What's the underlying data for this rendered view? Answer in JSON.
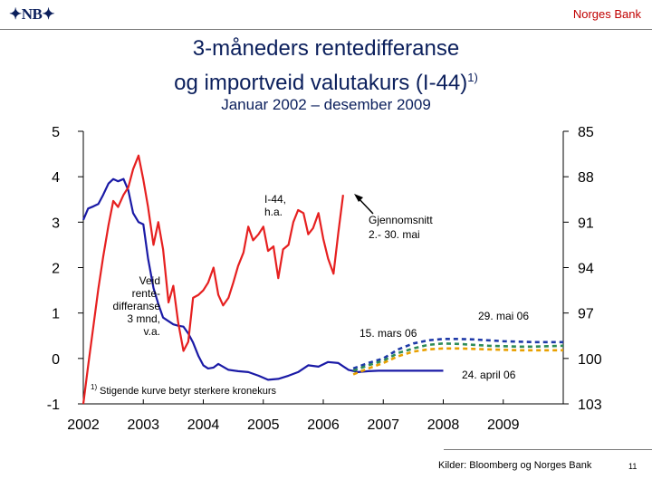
{
  "header": {
    "logo": "NB",
    "bank_name": "Norges Bank"
  },
  "footer": {
    "sources": "Kilder: Bloomberg og Norges Bank",
    "page_number": "11"
  },
  "colors": {
    "title": "#0b1f5c",
    "brand_red": "#c00000",
    "spread_line": "#1a1aa6",
    "currency_line": "#e62020",
    "forecast_blue": "#1f3aa8",
    "forecast_green": "#2e8b57",
    "forecast_orange": "#e8a000"
  },
  "chart_data": {
    "type": "line",
    "title": "3-måneders rentedifferanse",
    "title_line2": "og importveid valutakurs (I-44)",
    "title_sup": "1)",
    "subtitle": "Januar 2002 – desember 2009",
    "x_ticks": [
      "2002",
      "2003",
      "2004",
      "2005",
      "2006",
      "2007",
      "2008",
      "2009"
    ],
    "xlim": [
      2002.0,
      2010.0
    ],
    "y_left": {
      "ylim": [
        -1,
        5
      ],
      "ticks": [
        "5",
        "4",
        "3",
        "2",
        "1",
        "0",
        "-1"
      ]
    },
    "y_right": {
      "ylim": [
        85,
        103
      ],
      "inverted": true,
      "ticks": [
        "85",
        "88",
        "91",
        "94",
        "97",
        "100",
        "103"
      ]
    },
    "grid": false,
    "footnote_marker": "1)",
    "footnote": "Stigende kurve betyr sterkere kronekurs",
    "annotations": {
      "i44_label": [
        "I-44,",
        "h.a."
      ],
      "spread_label": [
        "Veid",
        "rente-",
        "differanse",
        "3 mnd,",
        "v.a."
      ],
      "avg_label": [
        "Gjennomsnitt",
        "2.- 30. mai"
      ],
      "mai06": "29. mai 06",
      "mars06": "15. mars 06",
      "april06": "24. april 06"
    },
    "series": [
      {
        "name": "Veid rentedifferanse 3 mnd",
        "axis": "left",
        "style": "solid",
        "color": "#1a1aa6",
        "x": [
          2002.0,
          2002.08,
          2002.17,
          2002.25,
          2002.33,
          2002.42,
          2002.5,
          2002.58,
          2002.67,
          2002.75,
          2002.83,
          2002.92,
          2003.0,
          2003.08,
          2003.17,
          2003.25,
          2003.33,
          2003.42,
          2003.5,
          2003.58,
          2003.67,
          2003.75,
          2003.83,
          2003.92,
          2004.0,
          2004.08,
          2004.17,
          2004.25,
          2004.42,
          2004.58,
          2004.75,
          2004.92,
          2005.08,
          2005.25,
          2005.42,
          2005.58,
          2005.75,
          2005.92,
          2006.08,
          2006.25,
          2006.42,
          2006.58,
          2006.75,
          2006.92,
          2007.0,
          2007.25,
          2007.5,
          2007.75,
          2008.0
        ],
        "values": [
          3.05,
          3.3,
          3.35,
          3.4,
          3.6,
          3.85,
          3.95,
          3.9,
          3.95,
          3.7,
          3.2,
          3.0,
          2.95,
          2.2,
          1.55,
          1.2,
          0.9,
          0.82,
          0.75,
          0.72,
          0.7,
          0.55,
          0.35,
          0.05,
          -0.15,
          -0.22,
          -0.2,
          -0.12,
          -0.25,
          -0.28,
          -0.3,
          -0.38,
          -0.47,
          -0.45,
          -0.38,
          -0.3,
          -0.15,
          -0.18,
          -0.08,
          -0.1,
          -0.25,
          -0.3,
          -0.28,
          -0.27,
          -0.27,
          -0.27,
          -0.27,
          -0.27,
          -0.27
        ]
      },
      {
        "name": "I-44",
        "axis": "right",
        "style": "solid",
        "color": "#e62020",
        "x": [
          2002.0,
          2002.08,
          2002.17,
          2002.25,
          2002.33,
          2002.42,
          2002.5,
          2002.58,
          2002.67,
          2002.75,
          2002.83,
          2002.92,
          2003.0,
          2003.08,
          2003.17,
          2003.25,
          2003.33,
          2003.42,
          2003.5,
          2003.58,
          2003.67,
          2003.75,
          2003.83,
          2003.92,
          2004.0,
          2004.08,
          2004.17,
          2004.25,
          2004.33,
          2004.42,
          2004.5,
          2004.58,
          2004.67,
          2004.75,
          2004.83,
          2004.92,
          2005.0,
          2005.08,
          2005.17,
          2005.25,
          2005.33,
          2005.42,
          2005.5,
          2005.58,
          2005.67,
          2005.75,
          2005.83,
          2005.92,
          2006.0,
          2006.08,
          2006.17,
          2006.25,
          2006.33
        ],
        "values": [
          103.0,
          100.5,
          97.8,
          95.4,
          93.3,
          91.2,
          89.6,
          90.0,
          89.2,
          88.7,
          87.5,
          86.6,
          88.2,
          90.0,
          92.5,
          91.0,
          92.8,
          96.3,
          95.2,
          97.6,
          99.5,
          98.9,
          96.0,
          95.8,
          95.5,
          95.0,
          94.0,
          95.8,
          96.5,
          96.0,
          95.0,
          93.9,
          93.0,
          91.3,
          92.2,
          91.8,
          91.3,
          92.9,
          92.6,
          94.7,
          92.8,
          92.5,
          91.0,
          90.2,
          90.4,
          91.8,
          91.4,
          90.4,
          92.1,
          93.4,
          94.4,
          91.7,
          89.2
        ]
      },
      {
        "name": "29. mai 06",
        "axis": "left",
        "style": "dashed",
        "color": "#1f3aa8",
        "x": [
          2006.5,
          2006.75,
          2007.0,
          2007.25,
          2007.5,
          2007.75,
          2008.0,
          2008.25,
          2008.5,
          2008.75,
          2009.0,
          2009.25,
          2009.5,
          2009.75,
          2010.0
        ],
        "values": [
          -0.22,
          -0.1,
          0.0,
          0.2,
          0.33,
          0.4,
          0.43,
          0.43,
          0.42,
          0.4,
          0.38,
          0.37,
          0.36,
          0.36,
          0.36
        ]
      },
      {
        "name": "15. mars 06",
        "axis": "left",
        "style": "dashed",
        "color": "#2e8b57",
        "x": [
          2006.5,
          2006.75,
          2007.0,
          2007.25,
          2007.5,
          2007.75,
          2008.0,
          2008.25,
          2008.5,
          2008.75,
          2009.0,
          2009.25,
          2009.5,
          2009.75,
          2010.0
        ],
        "values": [
          -0.27,
          -0.15,
          -0.05,
          0.12,
          0.22,
          0.3,
          0.33,
          0.32,
          0.3,
          0.28,
          0.27,
          0.26,
          0.26,
          0.27,
          0.28
        ]
      },
      {
        "name": "24. april 06",
        "axis": "left",
        "style": "dashed",
        "color": "#e8a000",
        "x": [
          2006.5,
          2006.75,
          2007.0,
          2007.25,
          2007.5,
          2007.75,
          2008.0,
          2008.25,
          2008.5,
          2008.75,
          2009.0,
          2009.25,
          2009.5,
          2009.75,
          2010.0
        ],
        "values": [
          -0.35,
          -0.22,
          -0.1,
          0.05,
          0.15,
          0.2,
          0.22,
          0.22,
          0.21,
          0.2,
          0.19,
          0.18,
          0.18,
          0.18,
          0.18
        ]
      }
    ]
  }
}
